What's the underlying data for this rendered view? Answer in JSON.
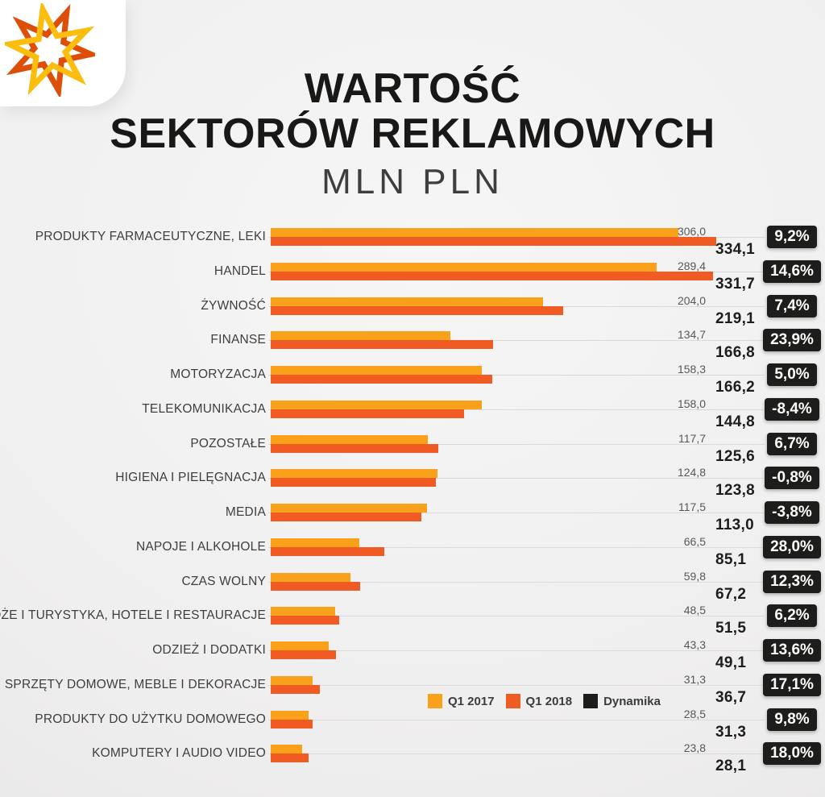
{
  "header": {
    "title_line1": "WARTOŚĆ",
    "title_line2": "SEKTORÓW REKLAMOWYCH",
    "subtitle": "MLN PLN"
  },
  "logo": {
    "icon": "star-burst-logo",
    "colors": {
      "yellow": "#FBBD0E",
      "orange": "#DD4F08"
    }
  },
  "legend": {
    "items": [
      {
        "label": "Q1 2017",
        "color": "#F9A11B"
      },
      {
        "label": "Q1 2018",
        "color": "#F05A23"
      },
      {
        "label": "Dynamika",
        "color": "#1D1D1B"
      }
    ]
  },
  "colors": {
    "background": "#EFEEEE",
    "bar_q1_2017": "#F9A11B",
    "bar_q1_2018": "#F05A23",
    "badge_bg": "#1D1D1B",
    "badge_text": "#FFFFFF",
    "category_text": "#3E3E3D",
    "value_2017_text": "#585856",
    "value_2018_text": "#1D1D1B",
    "gridline": "#DBDAD9"
  },
  "chart_data": {
    "type": "bar",
    "orientation": "horizontal",
    "title": "WARTOŚĆ SEKTORÓW REKLAMOWYCH",
    "subtitle_unit": "MLN PLN",
    "value_format": "decimal-comma (pl-PL), one decimal place",
    "xlim": [
      0,
      345
    ],
    "grid": "faint horizontal line per row behind bars",
    "legend_position": "inside bottom-center",
    "series_names": [
      "Q1 2017",
      "Q1 2018",
      "Dynamika"
    ],
    "categories": [
      "PRODUKTY FARMACEUTYCZNE, LEKI",
      "HANDEL",
      "ŻYWNOŚĆ",
      "FINANSE",
      "MOTORYZACJA",
      "TELEKOMUNIKACJA",
      "POZOSTAŁE",
      "HIGIENA I PIELĘGNACJA",
      "MEDIA",
      "NAPOJE I ALKOHOLE",
      "CZAS WOLNY",
      "PODRÓŻE I TURYSTYKA, HOTELE I RESTAURACJE",
      "ODZIEŻ I DODATKI",
      "SPRZĘTY DOMOWE, MEBLE I DEKORACJE",
      "PRODUKTY DO UŻYTKU DOMOWEGO",
      "KOMPUTERY I AUDIO VIDEO"
    ],
    "q1_2017": [
      306.0,
      289.4,
      204.0,
      134.7,
      158.3,
      158.0,
      117.7,
      124.8,
      117.5,
      66.5,
      59.8,
      48.5,
      43.3,
      31.3,
      28.5,
      23.8
    ],
    "q1_2018": [
      334.1,
      331.7,
      219.1,
      166.8,
      166.2,
      144.8,
      125.6,
      123.8,
      113.0,
      85.1,
      67.2,
      51.5,
      49.1,
      36.7,
      31.3,
      28.1
    ],
    "dynamika_pct": [
      9.2,
      14.6,
      7.4,
      23.9,
      5.0,
      -8.4,
      6.7,
      -0.8,
      -3.8,
      28.0,
      12.3,
      6.2,
      13.6,
      17.1,
      9.8,
      18.0
    ]
  }
}
